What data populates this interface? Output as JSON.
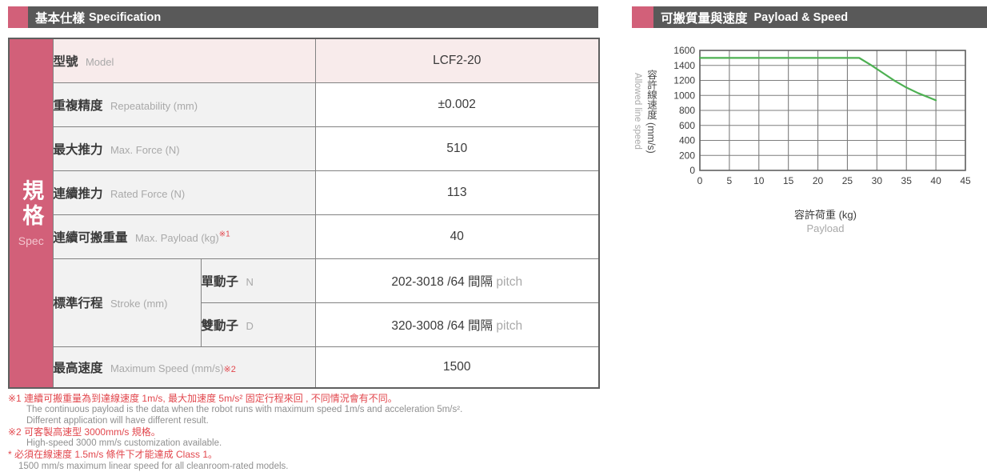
{
  "colors": {
    "accent_pink": "#d26079",
    "header_gray": "#595959",
    "row_pink_bg": "#f8ebeb",
    "label_gray_bg": "#f2f2f2",
    "cell_border": "#828282",
    "outer_border": "#5f5f5f",
    "dark_text": "#3a3a3a",
    "muted_text": "#a9a9a9",
    "red_text": "#e2474d",
    "line_green": "#4db052",
    "grid_gray": "#7d7d7d"
  },
  "spec_header": {
    "zh": "基本仕樣",
    "en": "Specification"
  },
  "chart_header": {
    "zh": "可搬質量與速度",
    "en": "Payload & Speed"
  },
  "spec_strip": {
    "zh": "規格",
    "en": "Spec"
  },
  "table": {
    "rows": [
      {
        "label_zh": "型號",
        "label_en": "Model",
        "value": "LCF2-20"
      },
      {
        "label_zh": "重複精度",
        "label_en": "Repeatability (mm)",
        "value": "±0.002"
      },
      {
        "label_zh": "最大推力",
        "label_en": "Max. Force (N)",
        "value": "510"
      },
      {
        "label_zh": "連續推力",
        "label_en": "Rated Force (N)",
        "value": "113"
      },
      {
        "label_zh": "連續可搬重量",
        "label_en": "Max. Payload (kg)",
        "note": "※1",
        "value": "40"
      },
      {
        "label_zh": "標準行程",
        "label_en": "Stroke (mm)",
        "sub_zh": "單動子",
        "sub_en": "N",
        "value": "202-3018 /64 間隔",
        "value_sub": "pitch"
      },
      {
        "sub_zh": "雙動子",
        "sub_en": "D",
        "value": "320-3008 /64 間隔",
        "value_sub": "pitch"
      },
      {
        "label_zh": "最高速度",
        "label_en": "Maximum Speed (mm/s)",
        "note": "※2",
        "value": "1500"
      }
    ]
  },
  "footnotes": [
    {
      "text": "※1 連續可搬重量為到達線速度 1m/s, 最大加速度 5m/s² 固定行程來回 , 不同情況會有不同。"
    },
    {
      "text": "The continuous payload is the data when the robot runs with maximum speed 1m/s and acceleration 5m/s²."
    },
    {
      "text": "Different application will have different result."
    },
    {
      "text": "※2 可客製高速型 3000mm/s 規格。"
    },
    {
      "text": "High-speed 3000 mm/s customization available."
    },
    {
      "text": "* 必須在線速度 1.5m/s 條件下才能達成 Class 1。"
    },
    {
      "text": "1500 mm/s maximum linear speed for all cleanroom-rated models."
    }
  ],
  "chart_data": {
    "type": "line",
    "title_zh": "可搬質量與速度",
    "title_en": "Payload & Speed",
    "xlabel_zh": "容許荷重 (kg)",
    "xlabel_en": "Payload",
    "ylabel_zh": "容許線速度  (mm/s)",
    "ylabel_en": "Allowed line speed",
    "xlim": [
      0,
      45
    ],
    "ylim": [
      0,
      1600
    ],
    "xticks": [
      0,
      5,
      10,
      15,
      20,
      25,
      30,
      35,
      40,
      45
    ],
    "yticks": [
      0,
      200,
      400,
      600,
      800,
      1000,
      1200,
      1400,
      1600
    ],
    "grid": true,
    "legend": "none",
    "line_color": "#4db052",
    "grid_color": "#7d7d7d",
    "border_color": "#606060",
    "tick_color": "#3d3d3d",
    "series": [
      {
        "name": "allowed-line-speed",
        "points": [
          [
            0,
            1500
          ],
          [
            27,
            1500
          ],
          [
            29,
            1405
          ],
          [
            31,
            1300
          ],
          [
            33,
            1195
          ],
          [
            35,
            1105
          ],
          [
            37,
            1030
          ],
          [
            40,
            935
          ]
        ]
      }
    ]
  }
}
